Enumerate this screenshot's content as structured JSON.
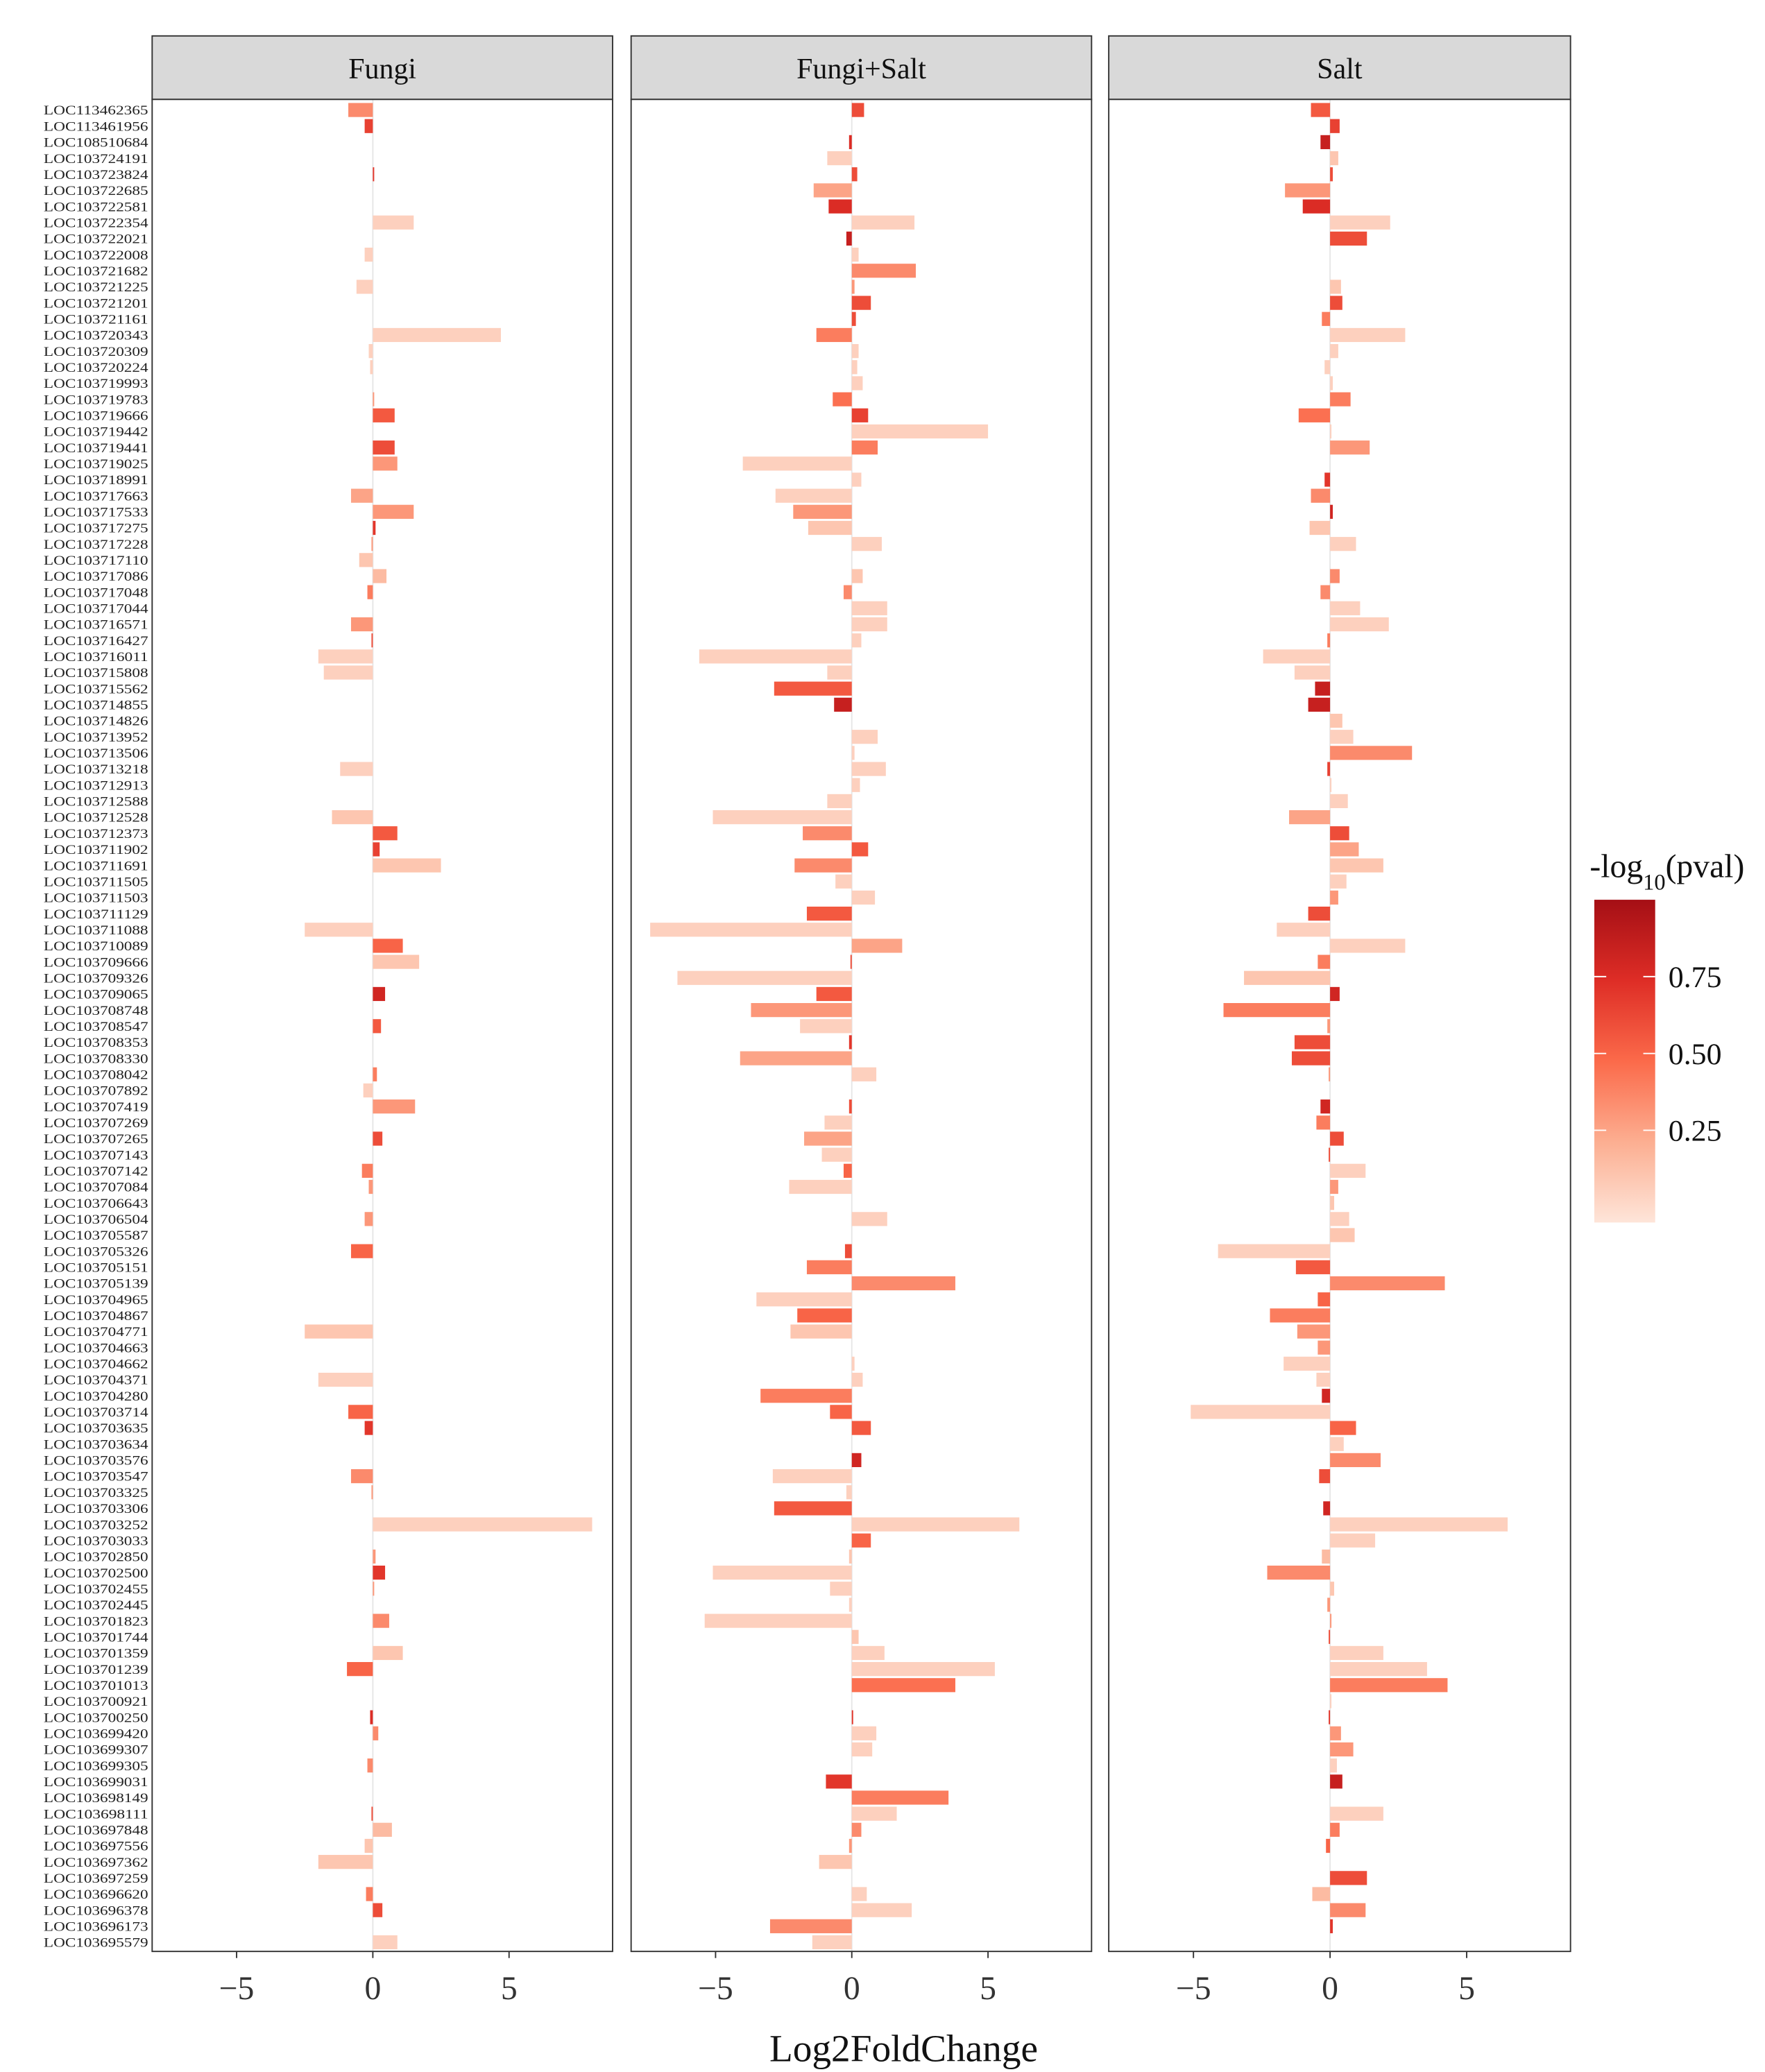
{
  "chart_data": {
    "type": "bar",
    "orientation": "horizontal",
    "categories": [
      "LOC113462365",
      "LOC113461956",
      "LOC108510684",
      "LOC103724191",
      "LOC103723824",
      "LOC103722685",
      "LOC103722581",
      "LOC103722354",
      "LOC103722021",
      "LOC103722008",
      "LOC103721682",
      "LOC103721225",
      "LOC103721201",
      "LOC103721161",
      "LOC103720343",
      "LOC103720309",
      "LOC103720224",
      "LOC103719993",
      "LOC103719783",
      "LOC103719666",
      "LOC103719442",
      "LOC103719441",
      "LOC103719025",
      "LOC103718991",
      "LOC103717663",
      "LOC103717533",
      "LOC103717275",
      "LOC103717228",
      "LOC103717110",
      "LOC103717086",
      "LOC103717048",
      "LOC103717044",
      "LOC103716571",
      "LOC103716427",
      "LOC103716011",
      "LOC103715808",
      "LOC103715562",
      "LOC103714855",
      "LOC103714826",
      "LOC103713952",
      "LOC103713506",
      "LOC103713218",
      "LOC103712913",
      "LOC103712588",
      "LOC103712528",
      "LOC103712373",
      "LOC103711902",
      "LOC103711691",
      "LOC103711505",
      "LOC103711503",
      "LOC103711129",
      "LOC103711088",
      "LOC103710089",
      "LOC103709666",
      "LOC103709326",
      "LOC103709065",
      "LOC103708748",
      "LOC103708547",
      "LOC103708353",
      "LOC103708330",
      "LOC103708042",
      "LOC103707892",
      "LOC103707419",
      "LOC103707269",
      "LOC103707265",
      "LOC103707143",
      "LOC103707142",
      "LOC103707084",
      "LOC103706643",
      "LOC103706504",
      "LOC103705587",
      "LOC103705326",
      "LOC103705151",
      "LOC103705139",
      "LOC103704965",
      "LOC103704867",
      "LOC103704771",
      "LOC103704663",
      "LOC103704662",
      "LOC103704371",
      "LOC103704280",
      "LOC103703714",
      "LOC103703635",
      "LOC103703634",
      "LOC103703576",
      "LOC103703547",
      "LOC103703325",
      "LOC103703306",
      "LOC103703252",
      "LOC103703033",
      "LOC103702850",
      "LOC103702500",
      "LOC103702455",
      "LOC103702445",
      "LOC103701823",
      "LOC103701744",
      "LOC103701359",
      "LOC103701239",
      "LOC103701013",
      "LOC103700921",
      "LOC103700250",
      "LOC103699420",
      "LOC103699307",
      "LOC103699305",
      "LOC103699031",
      "LOC103698149",
      "LOC103698111",
      "LOC103697848",
      "LOC103697556",
      "LOC103697362",
      "LOC103697259",
      "LOC103696620",
      "LOC103696378",
      "LOC103696173",
      "LOC103695579"
    ],
    "panels": [
      {
        "title": "Fungi",
        "values": [
          -0.9,
          -0.3,
          0,
          0,
          0.05,
          0,
          0,
          1.5,
          0,
          -0.3,
          0,
          -0.6,
          0,
          0,
          4.7,
          -0.15,
          -0.1,
          0,
          0.05,
          0.8,
          0,
          0.8,
          0.9,
          0,
          -0.8,
          1.5,
          0.1,
          -0.05,
          -0.5,
          0.5,
          -0.2,
          0,
          -0.8,
          -0.05,
          -2.0,
          -1.8,
          0,
          0,
          0,
          0,
          0,
          -1.2,
          0,
          0,
          -1.5,
          0.9,
          0.25,
          2.5,
          0,
          0,
          0,
          -2.5,
          1.1,
          1.7,
          0,
          0.45,
          0,
          0.3,
          0,
          0,
          0.15,
          -0.35,
          1.55,
          0,
          0.35,
          0,
          -0.4,
          -0.15,
          0,
          -0.3,
          0,
          -0.8,
          0,
          0,
          0,
          0,
          -2.5,
          0,
          0,
          -2.0,
          0,
          -0.9,
          -0.3,
          0,
          0,
          -0.8,
          -0.05,
          0,
          8.05,
          0,
          0.1,
          0.45,
          0.05,
          0,
          0.6,
          0,
          1.1,
          -0.95,
          0,
          0,
          -0.1,
          0.2,
          0,
          -0.2,
          0,
          0,
          -0.05,
          0.7,
          -0.3,
          -2.0,
          0,
          -0.25,
          0.35,
          0,
          0.9
        ],
        "pvals": [
          0.35,
          0.65,
          0.05,
          0.05,
          0.7,
          0.05,
          0.05,
          0.05,
          0.05,
          0.05,
          0.05,
          0.05,
          0.05,
          0.05,
          0.05,
          0.05,
          0.05,
          0.05,
          0.3,
          0.55,
          0.05,
          0.6,
          0.3,
          0.05,
          0.25,
          0.3,
          0.7,
          0.3,
          0.1,
          0.15,
          0.4,
          0.05,
          0.3,
          0.6,
          0.05,
          0.05,
          0.05,
          0.05,
          0.05,
          0.05,
          0.05,
          0.05,
          0.05,
          0.05,
          0.1,
          0.55,
          0.65,
          0.1,
          0.05,
          0.05,
          0.05,
          0.05,
          0.5,
          0.1,
          0.05,
          0.8,
          0.05,
          0.55,
          0.05,
          0.05,
          0.4,
          0.05,
          0.3,
          0.05,
          0.6,
          0.05,
          0.4,
          0.3,
          0.05,
          0.3,
          0.05,
          0.5,
          0.05,
          0.05,
          0.05,
          0.05,
          0.1,
          0.05,
          0.05,
          0.05,
          0.05,
          0.5,
          0.7,
          0.05,
          0.05,
          0.35,
          0.3,
          0.05,
          0.05,
          0.05,
          0.3,
          0.7,
          0.3,
          0.05,
          0.35,
          0.05,
          0.1,
          0.5,
          0.05,
          0.05,
          0.75,
          0.35,
          0.05,
          0.35,
          0.05,
          0.05,
          0.6,
          0.15,
          0.1,
          0.1,
          0.05,
          0.4,
          0.6,
          0.05,
          0.05
        ]
      },
      {
        "title": "Fungi+Salt",
        "values": [
          0.45,
          0,
          -0.1,
          -0.9,
          0.2,
          -1.4,
          -0.85,
          2.3,
          -0.2,
          0.25,
          2.35,
          0.1,
          0.7,
          0.15,
          -1.3,
          0.25,
          0.2,
          0.4,
          -0.7,
          0.6,
          5.0,
          0.95,
          -4.0,
          0.35,
          -2.8,
          -2.15,
          -1.6,
          1.1,
          0,
          0.4,
          -0.3,
          1.3,
          1.3,
          0.35,
          -5.6,
          -0.9,
          -2.85,
          -0.65,
          0,
          0.95,
          0.1,
          1.25,
          0.3,
          -0.9,
          -5.1,
          -1.8,
          0.6,
          -2.1,
          -0.6,
          0.85,
          -1.65,
          -7.4,
          1.85,
          -0.05,
          -6.4,
          -1.3,
          -3.7,
          -1.9,
          -0.1,
          -4.1,
          0.9,
          0,
          -0.1,
          -1.0,
          -1.75,
          -1.1,
          -0.3,
          -2.3,
          0,
          1.3,
          0,
          -0.25,
          -1.65,
          3.8,
          -3.5,
          -2.0,
          -2.25,
          0,
          0.1,
          0.4,
          -3.35,
          -0.8,
          0.7,
          0,
          0.35,
          -2.9,
          -0.2,
          -2.85,
          6.15,
          0.7,
          -0.1,
          -5.1,
          -0.8,
          -0.1,
          -5.4,
          0.25,
          1.2,
          5.25,
          3.8,
          0,
          0.05,
          0.9,
          0.75,
          0,
          -0.95,
          3.55,
          1.65,
          0.35,
          -0.1,
          -1.2,
          0,
          0.55,
          2.2,
          -3.0,
          -1.45
        ],
        "pvals": [
          0.6,
          0.05,
          0.75,
          0.05,
          0.6,
          0.25,
          0.75,
          0.05,
          0.85,
          0.05,
          0.35,
          0.3,
          0.6,
          0.6,
          0.4,
          0.05,
          0.05,
          0.05,
          0.45,
          0.65,
          0.05,
          0.4,
          0.05,
          0.05,
          0.05,
          0.3,
          0.1,
          0.05,
          0.05,
          0.1,
          0.35,
          0.05,
          0.05,
          0.05,
          0.05,
          0.05,
          0.55,
          0.85,
          0.05,
          0.05,
          0.05,
          0.05,
          0.05,
          0.05,
          0.05,
          0.35,
          0.55,
          0.35,
          0.05,
          0.05,
          0.55,
          0.05,
          0.25,
          0.6,
          0.05,
          0.55,
          0.3,
          0.05,
          0.7,
          0.25,
          0.05,
          0.05,
          0.6,
          0.05,
          0.25,
          0.05,
          0.5,
          0.05,
          0.05,
          0.05,
          0.05,
          0.6,
          0.4,
          0.35,
          0.05,
          0.5,
          0.1,
          0.05,
          0.05,
          0.05,
          0.4,
          0.5,
          0.55,
          0.05,
          0.8,
          0.05,
          0.05,
          0.55,
          0.05,
          0.5,
          0.1,
          0.05,
          0.05,
          0.05,
          0.05,
          0.1,
          0.05,
          0.05,
          0.45,
          0.05,
          0.7,
          0.05,
          0.05,
          0.05,
          0.7,
          0.4,
          0.05,
          0.35,
          0.3,
          0.1,
          0.05,
          0.05,
          0.05,
          0.35,
          0.05
        ]
      },
      {
        "title": "Salt",
        "values": [
          -0.7,
          0.35,
          -0.35,
          0.3,
          0.1,
          -1.65,
          -1.0,
          2.2,
          1.35,
          0,
          0,
          0.4,
          0.45,
          -0.3,
          2.75,
          0.3,
          -0.2,
          0.1,
          0.75,
          -1.15,
          0.05,
          1.45,
          0,
          -0.2,
          -0.7,
          0.1,
          -0.75,
          0.95,
          0,
          0.35,
          -0.35,
          1.1,
          2.15,
          -0.1,
          -2.45,
          -1.3,
          -0.55,
          -0.8,
          0.45,
          0.85,
          3.0,
          -0.1,
          0.05,
          0.65,
          -1.5,
          0.7,
          1.05,
          1.95,
          0.6,
          0.3,
          -0.8,
          -1.95,
          2.75,
          -0.45,
          -3.15,
          0.35,
          -3.9,
          -0.1,
          -1.3,
          -1.4,
          -0.05,
          0,
          -0.35,
          -0.5,
          0.5,
          -0.05,
          1.3,
          0.3,
          0.15,
          0.7,
          0.9,
          -4.1,
          -1.25,
          4.2,
          -0.45,
          -2.2,
          -1.2,
          -0.45,
          -1.7,
          -0.5,
          -0.3,
          -5.1,
          0.95,
          0.5,
          1.85,
          -0.4,
          0,
          -0.25,
          6.5,
          1.65,
          -0.3,
          -2.3,
          0.15,
          -0.1,
          0.05,
          -0.05,
          1.95,
          3.55,
          4.3,
          0.05,
          -0.05,
          0.4,
          0.85,
          0.25,
          0.45,
          0,
          1.95,
          0.35,
          -0.15,
          0,
          1.35,
          -0.65,
          1.3,
          0.1,
          0
        ],
        "pvals": [
          0.55,
          0.65,
          0.85,
          0.1,
          0.6,
          0.3,
          0.75,
          0.05,
          0.6,
          0.05,
          0.05,
          0.1,
          0.6,
          0.4,
          0.05,
          0.05,
          0.05,
          0.05,
          0.4,
          0.45,
          0.05,
          0.3,
          0.05,
          0.7,
          0.35,
          0.8,
          0.1,
          0.05,
          0.05,
          0.35,
          0.35,
          0.05,
          0.05,
          0.4,
          0.05,
          0.05,
          0.85,
          0.85,
          0.1,
          0.05,
          0.35,
          0.65,
          0.05,
          0.05,
          0.25,
          0.6,
          0.25,
          0.1,
          0.05,
          0.3,
          0.6,
          0.05,
          0.05,
          0.4,
          0.1,
          0.8,
          0.4,
          0.3,
          0.6,
          0.6,
          0.3,
          0.05,
          0.8,
          0.4,
          0.6,
          0.6,
          0.05,
          0.3,
          0.1,
          0.05,
          0.1,
          0.05,
          0.55,
          0.35,
          0.5,
          0.4,
          0.3,
          0.3,
          0.05,
          0.05,
          0.8,
          0.05,
          0.5,
          0.05,
          0.35,
          0.6,
          0.05,
          0.8,
          0.05,
          0.05,
          0.15,
          0.35,
          0.1,
          0.3,
          0.3,
          0.6,
          0.05,
          0.05,
          0.4,
          0.05,
          0.7,
          0.3,
          0.3,
          0.05,
          0.85,
          0.05,
          0.05,
          0.4,
          0.5,
          0.05,
          0.6,
          0.15,
          0.35,
          0.7,
          0.05
        ]
      }
    ],
    "xlabel": "Log2FoldChange",
    "xlim": [
      -8.1,
      8.8
    ],
    "xticks": [
      {
        "value": -5,
        "label": "−5"
      },
      0,
      5
    ],
    "zero_line": true,
    "colorbar": {
      "title_parts": [
        "-log",
        "10",
        "(pval)"
      ],
      "clim": [
        -0.05,
        1.0
      ],
      "ticks": [
        0.25,
        {
          "value": 0.5,
          "label": "0.50"
        },
        0.75
      ],
      "colors": [
        "#fee5d9",
        "#fcae91",
        "#fb6a4a",
        "#de2d26",
        "#a50f15"
      ]
    }
  }
}
